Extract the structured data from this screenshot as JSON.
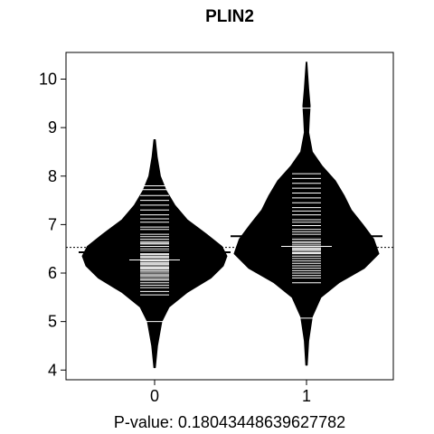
{
  "chart_data": {
    "type": "beanplot",
    "title": "PLIN2",
    "xlabel": "P-value: 0.18043448639627782",
    "ylabel": "",
    "categories": [
      "0",
      "1"
    ],
    "ylim": [
      3.8,
      10.55
    ],
    "yticks": [
      4,
      5,
      6,
      7,
      8,
      9,
      10
    ],
    "overall_mean": 6.53,
    "beans": [
      {
        "name": "0",
        "mean": 6.43,
        "median": 6.27,
        "min": 4.0,
        "max": 8.75,
        "extreme_lines": [
          5.0,
          7.8
        ],
        "density": [
          [
            4.05,
            0.01
          ],
          [
            4.5,
            0.04
          ],
          [
            5.0,
            0.1
          ],
          [
            5.3,
            0.2
          ],
          [
            5.6,
            0.45
          ],
          [
            5.9,
            0.78
          ],
          [
            6.15,
            0.95
          ],
          [
            6.35,
            1.0
          ],
          [
            6.55,
            0.93
          ],
          [
            6.8,
            0.72
          ],
          [
            7.1,
            0.45
          ],
          [
            7.4,
            0.28
          ],
          [
            7.7,
            0.16
          ],
          [
            8.0,
            0.08
          ],
          [
            8.4,
            0.035
          ],
          [
            8.75,
            0.01
          ]
        ],
        "observations": [
          5.55,
          5.62,
          5.7,
          5.75,
          5.8,
          5.85,
          5.88,
          5.92,
          5.95,
          5.98,
          6.02,
          6.05,
          6.08,
          6.1,
          6.12,
          6.15,
          6.18,
          6.2,
          6.22,
          6.25,
          6.3,
          6.33,
          6.35,
          6.38,
          6.4,
          6.43,
          6.45,
          6.5,
          6.55,
          6.6,
          6.62,
          6.65,
          6.7,
          6.75,
          6.8,
          6.9,
          6.95,
          7.05,
          7.12,
          7.2,
          7.3,
          7.4,
          7.5,
          7.6,
          7.72
        ]
      },
      {
        "name": "1",
        "mean": 6.76,
        "median": 6.55,
        "min": 4.1,
        "max": 10.35,
        "extreme_lines": [
          5.07,
          9.4
        ],
        "density": [
          [
            4.1,
            0.01
          ],
          [
            4.6,
            0.03
          ],
          [
            5.1,
            0.08
          ],
          [
            5.5,
            0.2
          ],
          [
            5.8,
            0.45
          ],
          [
            6.1,
            0.8
          ],
          [
            6.4,
            1.0
          ],
          [
            6.7,
            0.93
          ],
          [
            7.0,
            0.78
          ],
          [
            7.3,
            0.62
          ],
          [
            7.6,
            0.52
          ],
          [
            7.9,
            0.4
          ],
          [
            8.2,
            0.22
          ],
          [
            8.5,
            0.08
          ],
          [
            8.9,
            0.03
          ],
          [
            9.2,
            0.04
          ],
          [
            9.45,
            0.05
          ],
          [
            9.8,
            0.03
          ],
          [
            10.35,
            0.005
          ]
        ],
        "observations": [
          5.8,
          5.9,
          5.95,
          6.0,
          6.05,
          6.1,
          6.15,
          6.2,
          6.25,
          6.3,
          6.35,
          6.4,
          6.42,
          6.45,
          6.48,
          6.5,
          6.52,
          6.55,
          6.58,
          6.62,
          6.65,
          6.7,
          6.75,
          6.8,
          6.85,
          6.9,
          6.98,
          7.05,
          7.1,
          7.2,
          7.28,
          7.35,
          7.45,
          7.55,
          7.65,
          7.75,
          7.85,
          7.95,
          8.05
        ]
      }
    ]
  }
}
